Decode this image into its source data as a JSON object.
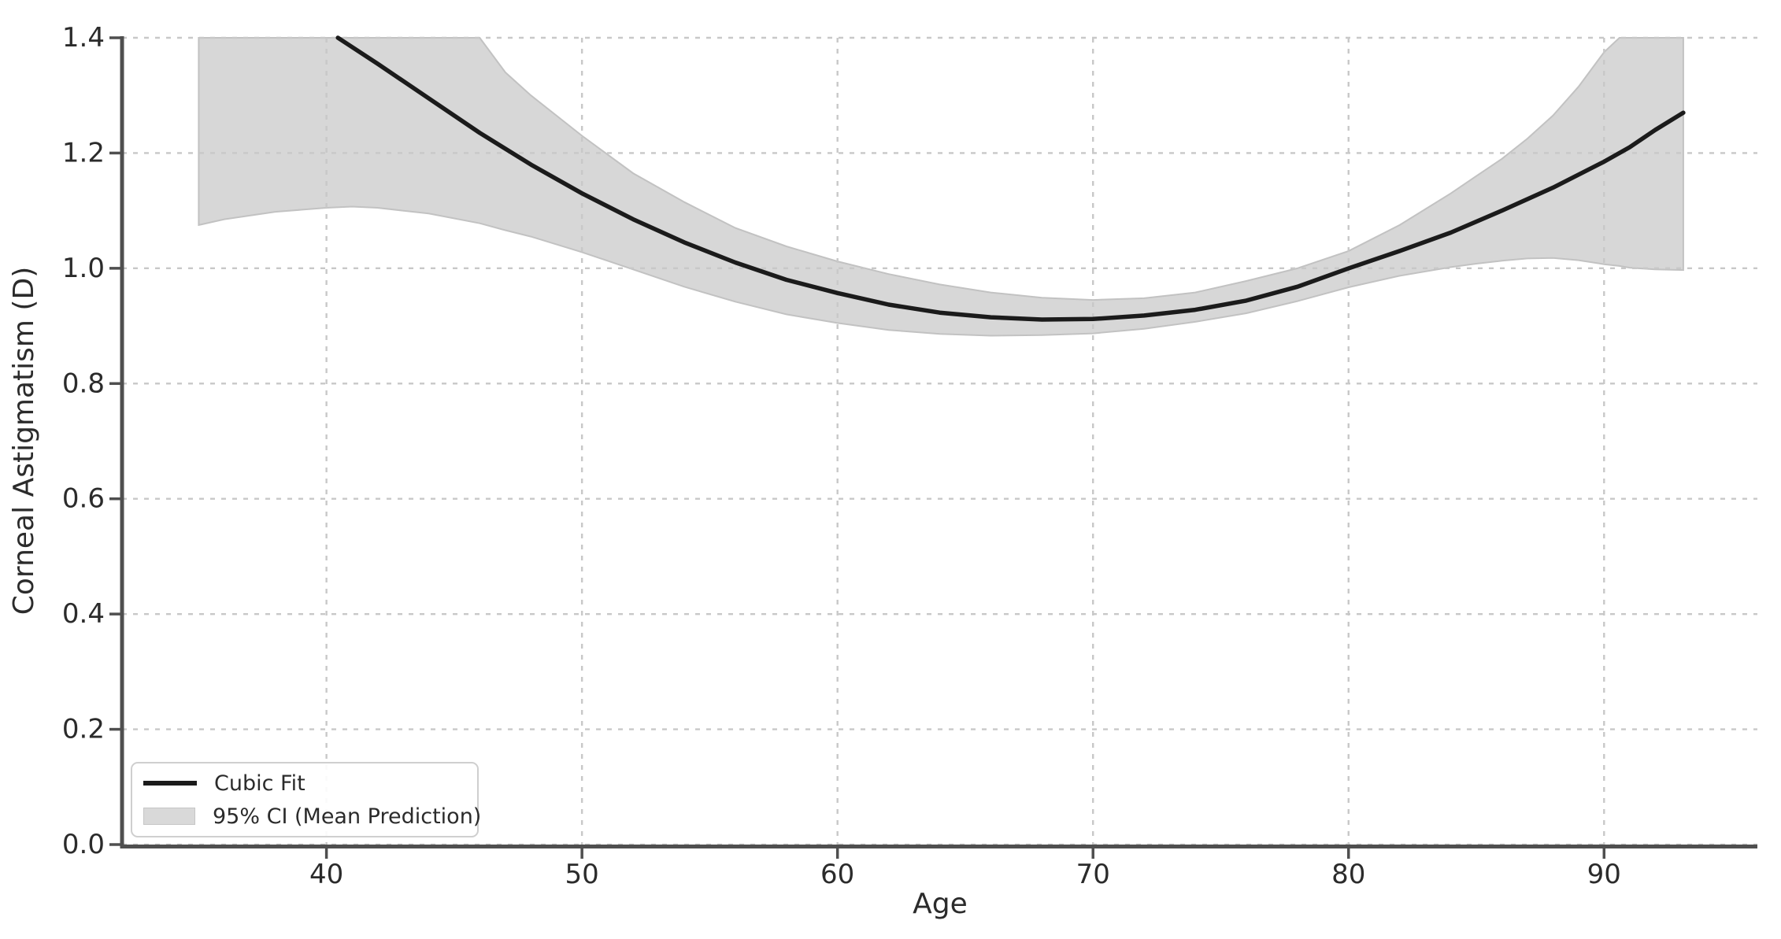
{
  "figure": {
    "background": "#ffffff"
  },
  "chart_data": {
    "type": "line",
    "title": "",
    "xlabel": "Age",
    "ylabel": "Corneal Astigmatism (D)",
    "xlim": [
      32,
      96
    ],
    "ylim": [
      0,
      1.4
    ],
    "xticks": [
      40,
      50,
      60,
      70,
      80,
      90
    ],
    "xtick_labels": [
      "40",
      "50",
      "60",
      "70",
      "80",
      "90"
    ],
    "yticks": [
      0,
      0.2,
      0.4,
      0.6,
      0.8,
      1.0,
      1.2,
      1.4
    ],
    "ytick_labels": [
      "0.0",
      "0.2",
      "0.4",
      "0.6",
      "0.8",
      "1.0",
      "1.2",
      "1.4"
    ],
    "grid": {
      "visible": true,
      "style": "dotted"
    },
    "colors": {
      "line": "#1b1b1b",
      "band": "#d7d7d7",
      "band_edge": "#c2c2c2",
      "grid": "#c8c8c8",
      "spine": "#4f4f4f",
      "text": "#2b2b2b",
      "legend_border": "#cfcfcf"
    },
    "legend": {
      "position": "lower left",
      "entries": [
        {
          "label": "Cubic Fit",
          "type": "line"
        },
        {
          "label": "95% CI (Mean Prediction)",
          "type": "patch"
        }
      ]
    },
    "series": [
      {
        "name": "Cubic Fit",
        "type": "line",
        "x": [
          40.45,
          42,
          44,
          46,
          48,
          50,
          52,
          54,
          56,
          58,
          60,
          62,
          64,
          66,
          68,
          70,
          72,
          74,
          76,
          78,
          80,
          82,
          84,
          86,
          88,
          90,
          91,
          92,
          93.1
        ],
        "y": [
          1.4,
          1.355,
          1.295,
          1.235,
          1.18,
          1.13,
          1.085,
          1.045,
          1.01,
          0.98,
          0.957,
          0.937,
          0.923,
          0.915,
          0.911,
          0.912,
          0.918,
          0.928,
          0.944,
          0.968,
          1.0,
          1.03,
          1.062,
          1.1,
          1.14,
          1.185,
          1.21,
          1.24,
          1.27
        ]
      },
      {
        "name": "95% CI (Mean Prediction)",
        "type": "band",
        "x": [
          35,
          36,
          38,
          40,
          41,
          42,
          44,
          46,
          47,
          48,
          50,
          52,
          54,
          56,
          58,
          60,
          62,
          64,
          66,
          68,
          70,
          72,
          74,
          76,
          78,
          80,
          82,
          84,
          85,
          86,
          87,
          88,
          89,
          90,
          90.6,
          91,
          92,
          93.1
        ],
        "upper": [
          1.4,
          1.4,
          1.4,
          1.4,
          1.4,
          1.4,
          1.4,
          1.4,
          1.34,
          1.3,
          1.23,
          1.165,
          1.115,
          1.07,
          1.038,
          1.012,
          0.99,
          0.972,
          0.958,
          0.949,
          0.945,
          0.948,
          0.958,
          0.978,
          1.0,
          1.03,
          1.075,
          1.13,
          1.16,
          1.19,
          1.225,
          1.265,
          1.315,
          1.375,
          1.4,
          1.4,
          1.4,
          1.4
        ],
        "lower": [
          1.075,
          1.085,
          1.098,
          1.105,
          1.107,
          1.105,
          1.095,
          1.078,
          1.066,
          1.055,
          1.028,
          0.998,
          0.968,
          0.942,
          0.92,
          0.905,
          0.893,
          0.886,
          0.883,
          0.884,
          0.887,
          0.895,
          0.907,
          0.922,
          0.943,
          0.967,
          0.987,
          1.002,
          1.008,
          1.013,
          1.017,
          1.018,
          1.014,
          1.007,
          1.004,
          1.001,
          0.998,
          0.997
        ]
      }
    ]
  }
}
